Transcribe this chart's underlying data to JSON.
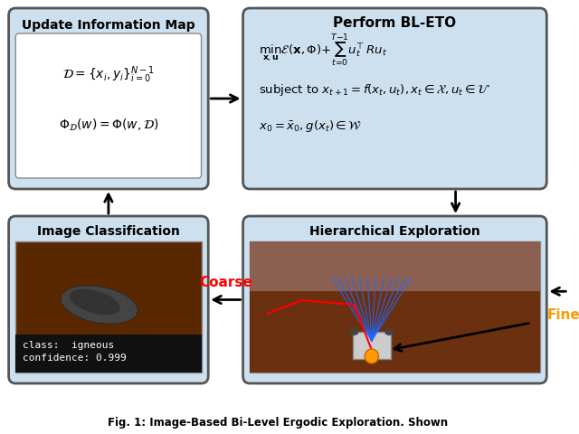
{
  "title": "Fig. 1: Image-Based Bi-Level Ergodic Exploration. Shown",
  "bg_color": "#ffffff",
  "box_bg_top_left": "#cce0f0",
  "box_bg_top_right": "#cce0f0",
  "box_bg_bot_left": "#cce0f0",
  "box_bg_bot_right": "#cce0f0",
  "box_border_color": "#333333",
  "inner_box_bg": "#ffffff",
  "top_left_title": "Update Information Map",
  "top_right_title": "Perform BL-ETO",
  "bot_left_title": "Image Classification",
  "bot_right_title": "Hierarchical Exploration",
  "img_class_bg": "#5a2800",
  "img_class_text": "class:  igneous\nconfidence: 0.999",
  "hierarch_bg": "#6b3a1f",
  "coarse_color": "#ff0000",
  "fine_color": "#ff9900",
  "arrow_color": "#000000"
}
